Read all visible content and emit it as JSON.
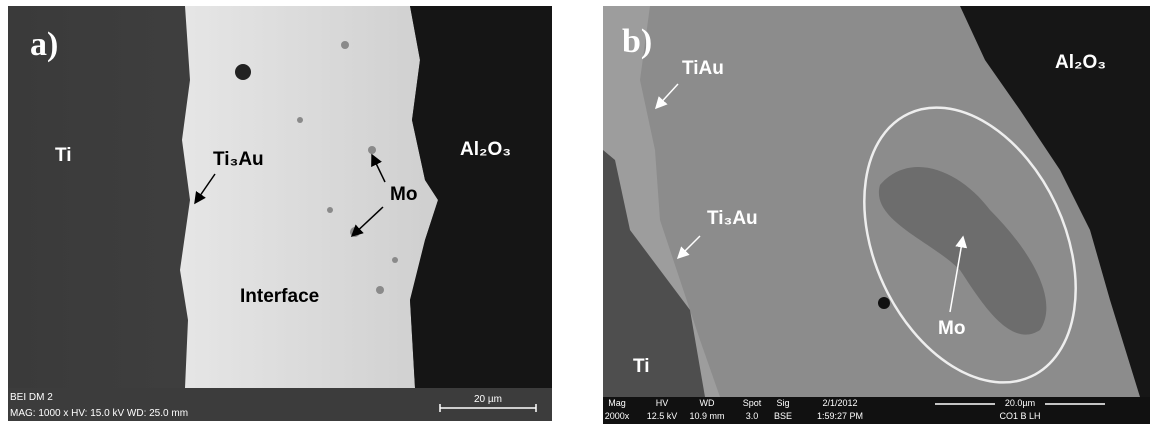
{
  "panels": [
    {
      "label": "a)",
      "phases": [
        "Ti",
        "Ti₃Au",
        "Mo",
        "Al₂O₃",
        "Interface"
      ],
      "info": {
        "line1": "BEI DM 2",
        "line2": "MAG: 1000 x  HV: 15.0 kV  WD: 25.0 mm",
        "scale": "20 µm"
      }
    },
    {
      "label": "b)",
      "phases": [
        "TiAu",
        "Ti₃Au",
        "Al₂O₃",
        "Mo",
        "Ti"
      ],
      "info": {
        "headers": [
          "Mag",
          "HV",
          "WD",
          "Spot",
          "Sig",
          "2/1/2012"
        ],
        "values": [
          "2000x",
          "12.5 kV",
          "10.9 mm",
          "3.0",
          "BSE",
          "1:59:27 PM"
        ],
        "scale": "20.0µm",
        "sample": "CO1 B LH"
      }
    }
  ]
}
